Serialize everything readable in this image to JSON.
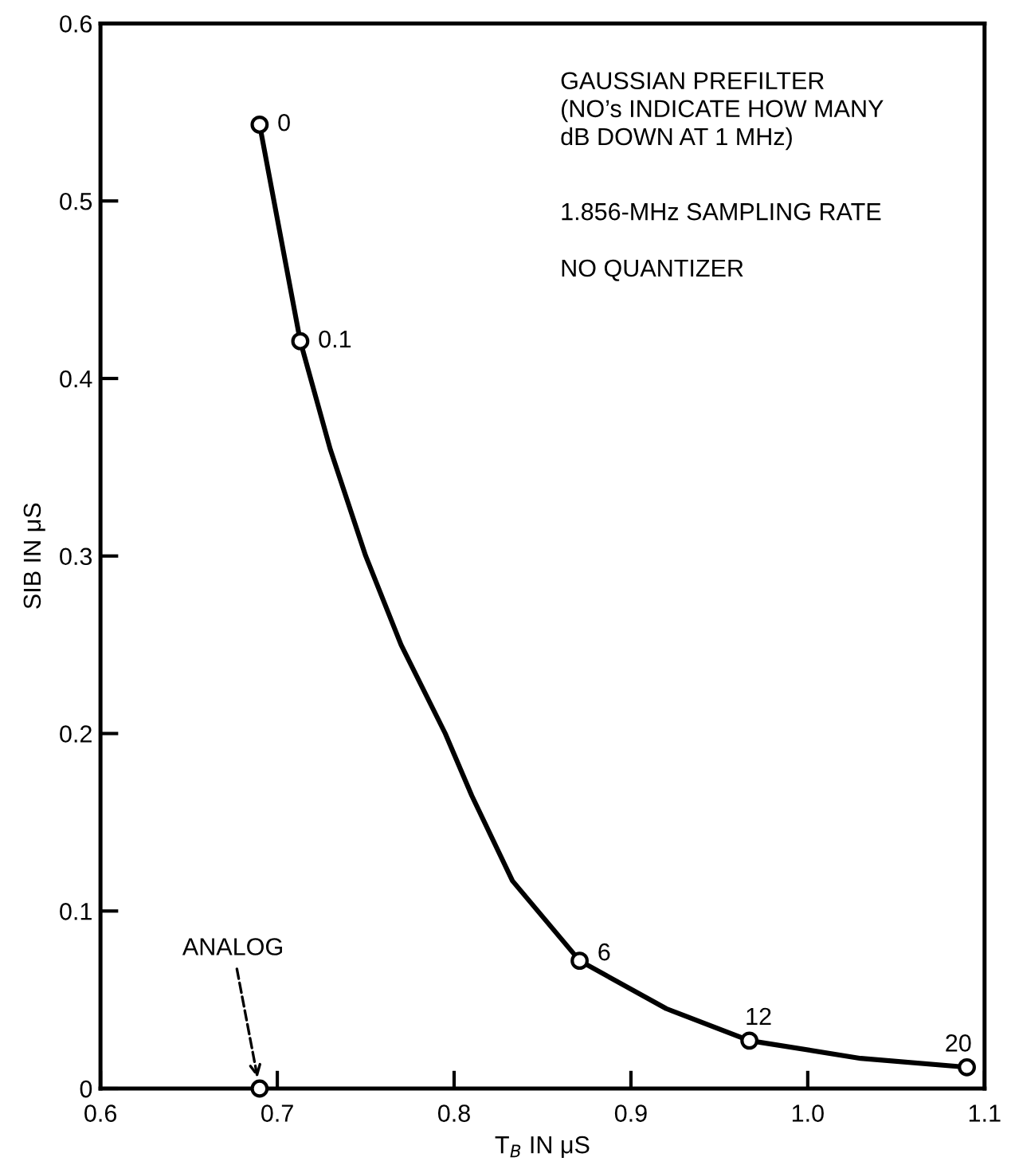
{
  "chart_data": {
    "type": "line",
    "xlabel": "T$_{B}$ IN μS",
    "ylabel": "SIB IN μS",
    "xlim": [
      0.6,
      1.1
    ],
    "xticks": [
      0.6,
      0.7,
      0.8,
      0.9,
      {
        "value": 1.0,
        "label": "1.0"
      },
      1.1
    ],
    "ylim": [
      0,
      0.6
    ],
    "yticks": [
      0,
      0.1,
      0.2,
      0.3,
      0.4,
      0.5,
      0.6
    ],
    "grid": false,
    "series": [
      {
        "color": "#000000",
        "marker": "none",
        "line_style": "solid",
        "x": [
          0.69,
          0.713,
          0.73,
          0.75,
          0.77,
          0.795,
          0.81,
          0.833,
          0.871,
          0.92,
          0.967,
          1.03,
          1.09
        ],
        "values": [
          0.543,
          0.421,
          0.36,
          0.3,
          0.25,
          0.2,
          0.165,
          0.117,
          0.072,
          0.045,
          0.027,
          0.017,
          0.012
        ]
      },
      {
        "type": "scatter",
        "color": "#000000",
        "marker": "circle",
        "x": [
          0.69,
          0.713,
          0.871,
          0.967,
          1.09,
          0.69
        ],
        "values": [
          0.543,
          0.421,
          0.072,
          0.027,
          0.012,
          0
        ]
      }
    ],
    "annotations": [
      {
        "text": "0",
        "x": 0.69,
        "y": 0.543
      },
      {
        "text": "0.1",
        "x": 0.713,
        "y": 0.421
      },
      {
        "text": "6",
        "x": 0.871,
        "y": 0.072
      },
      {
        "text": "12",
        "x": 0.967,
        "y": 0.027
      },
      {
        "text": "20",
        "x": 1.09,
        "y": 0.012
      },
      {
        "text": "ANALOG",
        "x": 0.69,
        "y": 0
      },
      "GAUSSIAN PREFILTER\n(NO’s INDICATE HOW MANY\ndB DOWN AT 1 MHz)",
      "1.856-MHz SAMPLING RATE",
      "NO QUANTIZER"
    ]
  }
}
